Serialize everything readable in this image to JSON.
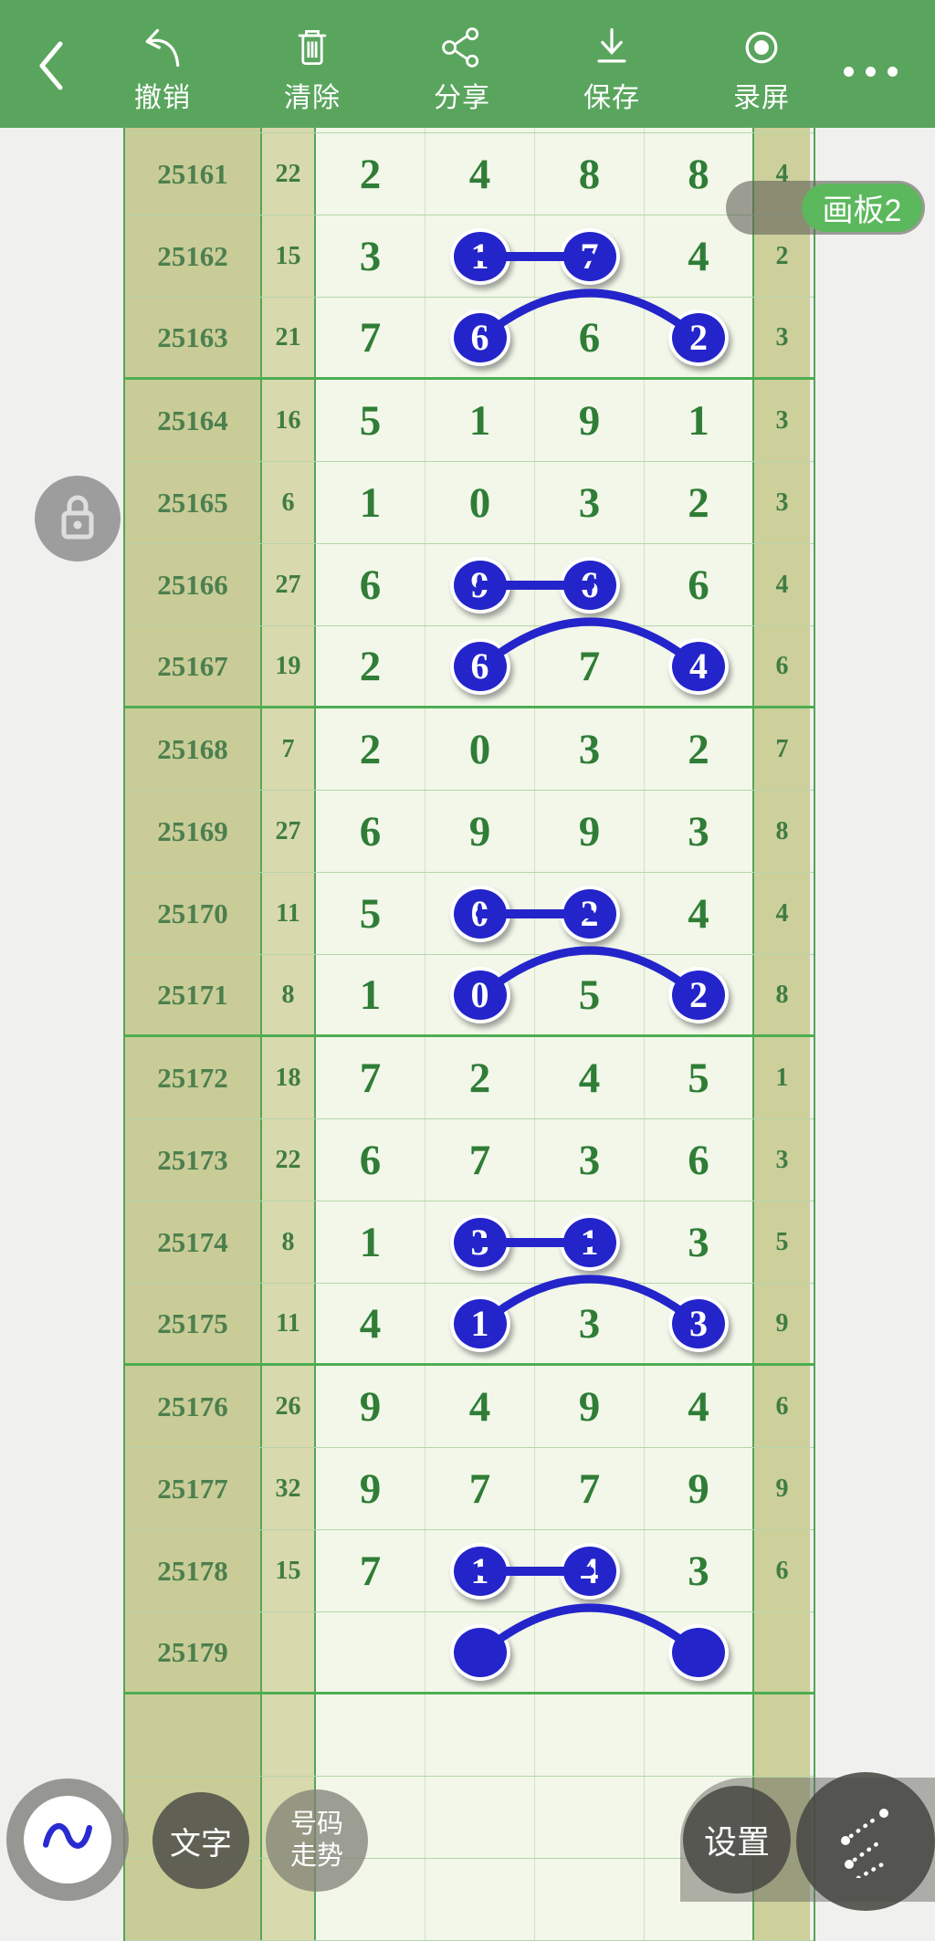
{
  "header": {
    "actions": [
      {
        "id": "undo",
        "label": "撤销"
      },
      {
        "id": "clear",
        "label": "清除"
      },
      {
        "id": "share",
        "label": "分享"
      },
      {
        "id": "save",
        "label": "保存"
      },
      {
        "id": "record",
        "label": "录屏"
      }
    ]
  },
  "board_badge": {
    "label": "画板2"
  },
  "table": {
    "rows": [
      {
        "period": "25161",
        "sum": "22",
        "digits": [
          "2",
          "4",
          "8",
          "8"
        ],
        "tail": "4",
        "circled": [],
        "link": null,
        "group_end": false
      },
      {
        "period": "25162",
        "sum": "15",
        "digits": [
          "3",
          "1",
          "7",
          "4"
        ],
        "tail": "2",
        "circled": [
          1,
          2
        ],
        "link": {
          "type": "line",
          "from": 1,
          "to": 2
        },
        "group_end": false
      },
      {
        "period": "25163",
        "sum": "21",
        "digits": [
          "7",
          "6",
          "6",
          "2"
        ],
        "tail": "3",
        "circled": [
          1,
          3
        ],
        "link": {
          "type": "arc",
          "from": 1,
          "to": 3
        },
        "group_end": true
      },
      {
        "period": "25164",
        "sum": "16",
        "digits": [
          "5",
          "1",
          "9",
          "1"
        ],
        "tail": "3",
        "circled": [],
        "link": null,
        "group_end": false
      },
      {
        "period": "25165",
        "sum": "6",
        "digits": [
          "1",
          "0",
          "3",
          "2"
        ],
        "tail": "3",
        "circled": [],
        "link": null,
        "group_end": false
      },
      {
        "period": "25166",
        "sum": "27",
        "digits": [
          "6",
          "9",
          "6",
          "6"
        ],
        "tail": "4",
        "circled": [
          1,
          2
        ],
        "link": {
          "type": "line",
          "from": 1,
          "to": 2
        },
        "group_end": false
      },
      {
        "period": "25167",
        "sum": "19",
        "digits": [
          "2",
          "6",
          "7",
          "4"
        ],
        "tail": "6",
        "circled": [
          1,
          3
        ],
        "link": {
          "type": "arc",
          "from": 1,
          "to": 3
        },
        "group_end": true
      },
      {
        "period": "25168",
        "sum": "7",
        "digits": [
          "2",
          "0",
          "3",
          "2"
        ],
        "tail": "7",
        "circled": [],
        "link": null,
        "group_end": false
      },
      {
        "period": "25169",
        "sum": "27",
        "digits": [
          "6",
          "9",
          "9",
          "3"
        ],
        "tail": "8",
        "circled": [],
        "link": null,
        "group_end": false
      },
      {
        "period": "25170",
        "sum": "11",
        "digits": [
          "5",
          "0",
          "2",
          "4"
        ],
        "tail": "4",
        "circled": [
          1,
          2
        ],
        "link": {
          "type": "line",
          "from": 1,
          "to": 2
        },
        "group_end": false
      },
      {
        "period": "25171",
        "sum": "8",
        "digits": [
          "1",
          "0",
          "5",
          "2"
        ],
        "tail": "8",
        "circled": [
          1,
          3
        ],
        "link": {
          "type": "arc",
          "from": 1,
          "to": 3
        },
        "group_end": true
      },
      {
        "period": "25172",
        "sum": "18",
        "digits": [
          "7",
          "2",
          "4",
          "5"
        ],
        "tail": "1",
        "circled": [],
        "link": null,
        "group_end": false
      },
      {
        "period": "25173",
        "sum": "22",
        "digits": [
          "6",
          "7",
          "3",
          "6"
        ],
        "tail": "3",
        "circled": [],
        "link": null,
        "group_end": false
      },
      {
        "period": "25174",
        "sum": "8",
        "digits": [
          "1",
          "3",
          "1",
          "3"
        ],
        "tail": "5",
        "circled": [
          1,
          2
        ],
        "link": {
          "type": "line",
          "from": 1,
          "to": 2
        },
        "group_end": false
      },
      {
        "period": "25175",
        "sum": "11",
        "digits": [
          "4",
          "1",
          "3",
          "3"
        ],
        "tail": "9",
        "circled": [
          1,
          3
        ],
        "link": {
          "type": "arc",
          "from": 1,
          "to": 3
        },
        "group_end": true
      },
      {
        "period": "25176",
        "sum": "26",
        "digits": [
          "9",
          "4",
          "9",
          "4"
        ],
        "tail": "6",
        "circled": [],
        "link": null,
        "group_end": false
      },
      {
        "period": "25177",
        "sum": "32",
        "digits": [
          "9",
          "7",
          "7",
          "9"
        ],
        "tail": "9",
        "circled": [],
        "link": null,
        "group_end": false
      },
      {
        "period": "25178",
        "sum": "15",
        "digits": [
          "7",
          "1",
          "4",
          "3"
        ],
        "tail": "6",
        "circled": [
          1,
          2
        ],
        "link": {
          "type": "line",
          "from": 1,
          "to": 2
        },
        "group_end": false
      },
      {
        "period": "25179",
        "sum": "",
        "digits": [
          "",
          "",
          "",
          ""
        ],
        "tail": "",
        "circled": [
          1,
          3
        ],
        "link": {
          "type": "arc",
          "from": 1,
          "to": 3
        },
        "group_end": true
      }
    ],
    "empty_rows": 3
  },
  "toolbar": {
    "text_label": "文字",
    "trend_line1": "号码",
    "trend_line2": "走势",
    "settings_label": "设置"
  },
  "colors": {
    "header_green": "#5aa55e",
    "annotation_blue": "#2424cb",
    "digit_green": "#2f7d36",
    "period_khaki": "#c9cc97",
    "group_line_green": "#4cae52",
    "badge_green": "#5cb85c"
  }
}
